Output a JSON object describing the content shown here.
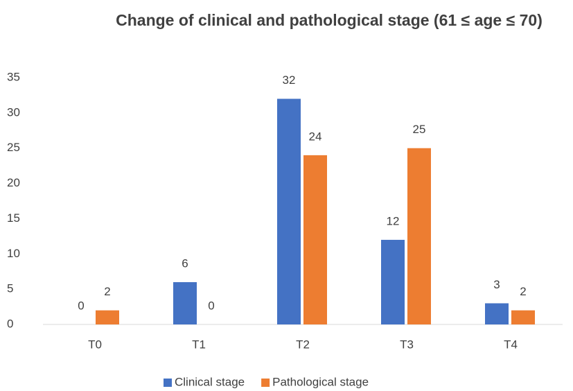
{
  "chart_data": {
    "type": "bar",
    "title": "Change of clinical and pathological stage (61 ≤ age ≤ 70)",
    "categories": [
      "T0",
      "T1",
      "T2",
      "T3",
      "T4"
    ],
    "series": [
      {
        "name": "Clinical stage",
        "color": "#4472c4",
        "values": [
          0,
          6,
          32,
          12,
          3
        ]
      },
      {
        "name": "Pathological stage",
        "color": "#ed7d31",
        "values": [
          2,
          0,
          24,
          25,
          2
        ]
      }
    ],
    "ylim": [
      0,
      35
    ],
    "yticks": [
      0,
      5,
      10,
      15,
      20,
      25,
      30,
      35
    ],
    "grid": false,
    "legend": "bottom"
  }
}
